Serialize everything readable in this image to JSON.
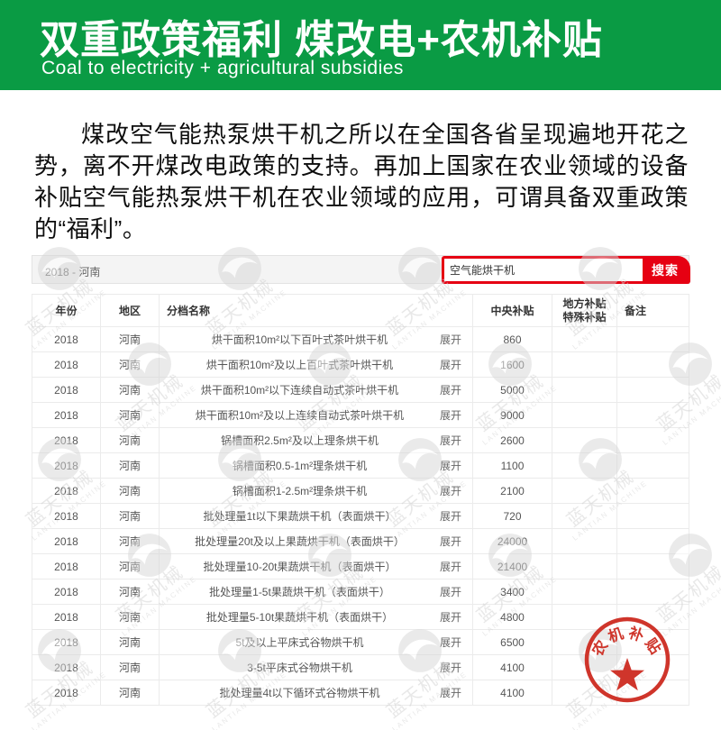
{
  "header": {
    "title": "双重政策福利  煤改电+农机补贴",
    "subtitle": "Coal to electricity + agricultural subsidies",
    "bg_color": "#0a9b44"
  },
  "intro": {
    "text": "煤改空气能热泵烘干机之所以在全国各省呈现遍地开花之势，离不开煤改电政策的支持。再加上国家在农业领域的设备补贴空气能热泵烘干机在农业领域的应用，可谓具备双重政策的“福利”。"
  },
  "panel": {
    "breadcrumb": "2018 - 河南",
    "search": {
      "value": "空气能烘干机",
      "button_label": "搜索",
      "accent_color": "#e60012"
    },
    "table": {
      "columns": [
        "年份",
        "地区",
        "分档名称",
        "中央补贴",
        "地方补贴\n特殊补贴",
        "备注"
      ],
      "expand_label": "展开",
      "rows": [
        {
          "year": "2018",
          "region": "河南",
          "name": "烘干面积10m²以下百叶式茶叶烘干机",
          "central": "860",
          "local": "",
          "note": ""
        },
        {
          "year": "2018",
          "region": "河南",
          "name": "烘干面积10m²及以上百叶式茶叶烘干机",
          "central": "1600",
          "local": "",
          "note": ""
        },
        {
          "year": "2018",
          "region": "河南",
          "name": "烘干面积10m²以下连续自动式茶叶烘干机",
          "central": "5000",
          "local": "",
          "note": ""
        },
        {
          "year": "2018",
          "region": "河南",
          "name": "烘干面积10m²及以上连续自动式茶叶烘干机",
          "central": "9000",
          "local": "",
          "note": ""
        },
        {
          "year": "2018",
          "region": "河南",
          "name": "锅槽面积2.5m²及以上理条烘干机",
          "central": "2600",
          "local": "",
          "note": ""
        },
        {
          "year": "2018",
          "region": "河南",
          "name": "锅槽面积0.5-1m²理条烘干机",
          "central": "1100",
          "local": "",
          "note": ""
        },
        {
          "year": "2018",
          "region": "河南",
          "name": "锅槽面积1-2.5m²理条烘干机",
          "central": "2100",
          "local": "",
          "note": ""
        },
        {
          "year": "2018",
          "region": "河南",
          "name": "批处理量1t以下果蔬烘干机（表面烘干）",
          "central": "720",
          "local": "",
          "note": ""
        },
        {
          "year": "2018",
          "region": "河南",
          "name": "批处理量20t及以上果蔬烘干机（表面烘干）",
          "central": "24000",
          "local": "",
          "note": ""
        },
        {
          "year": "2018",
          "region": "河南",
          "name": "批处理量10-20t果蔬烘干机（表面烘干）",
          "central": "21400",
          "local": "",
          "note": ""
        },
        {
          "year": "2018",
          "region": "河南",
          "name": "批处理量1-5t果蔬烘干机（表面烘干）",
          "central": "3400",
          "local": "",
          "note": ""
        },
        {
          "year": "2018",
          "region": "河南",
          "name": "批处理量5-10t果蔬烘干机（表面烘干）",
          "central": "4800",
          "local": "",
          "note": ""
        },
        {
          "year": "2018",
          "region": "河南",
          "name": "5t及以上平床式谷物烘干机",
          "central": "6500",
          "local": "",
          "note": ""
        },
        {
          "year": "2018",
          "region": "河南",
          "name": "3-5t平床式谷物烘干机",
          "central": "4100",
          "local": "",
          "note": ""
        },
        {
          "year": "2018",
          "region": "河南",
          "name": "批处理量4t以下循环式谷物烘干机",
          "central": "4100",
          "local": "",
          "note": ""
        }
      ]
    }
  },
  "stamp": {
    "text": "农机补贴",
    "color": "#cf352b"
  },
  "watermark": {
    "name": "蓝天机械",
    "latin": "LANTIAN MACHINE"
  }
}
